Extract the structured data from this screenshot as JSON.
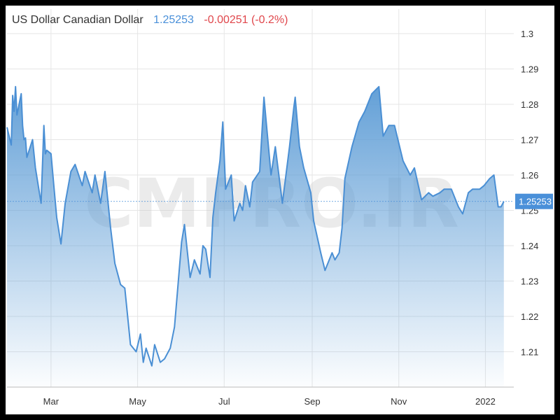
{
  "header": {
    "pair_name": "US Dollar Canadian Dollar",
    "last_price": "1.25253",
    "change": "-0.00251 (-0.2%)"
  },
  "watermark": "CMPRO.IR",
  "colors": {
    "line": "#4a8fd4",
    "fill_top": "#5b9bd5",
    "price_label_bg": "#4a90d9",
    "change_negative": "#e0474c",
    "grid": "#e6e6e6"
  },
  "chart_data": {
    "type": "area",
    "title": "US Dollar Canadian Dollar",
    "xlabel": "",
    "ylabel": "",
    "x_ticks": [
      "Mar",
      "May",
      "Jul",
      "Sep",
      "Nov",
      "2022"
    ],
    "y_ticks": [
      "1.21",
      "1.22",
      "1.23",
      "1.24",
      "1.25",
      "1.26",
      "1.27",
      "1.28",
      "1.29",
      "1.3"
    ],
    "ylim": [
      1.2,
      1.3
    ],
    "current_value": 1.25253,
    "current_value_label": "1.25253",
    "grid": true,
    "series": [
      {
        "x": [
          "2021-01-29",
          "2021-02-01",
          "2021-02-02",
          "2021-02-03",
          "2021-02-04",
          "2021-02-05",
          "2021-02-08",
          "2021-02-09",
          "2021-02-10",
          "2021-02-11",
          "2021-02-12",
          "2021-02-16",
          "2021-02-18",
          "2021-02-22",
          "2021-02-24",
          "2021-02-25",
          "2021-02-26",
          "2021-03-01",
          "2021-03-03",
          "2021-03-05",
          "2021-03-08",
          "2021-03-11",
          "2021-03-15",
          "2021-03-18",
          "2021-03-23",
          "2021-03-25",
          "2021-03-30",
          "2021-04-01",
          "2021-04-05",
          "2021-04-08",
          "2021-04-12",
          "2021-04-15",
          "2021-04-19",
          "2021-04-22",
          "2021-04-26",
          "2021-04-30",
          "2021-05-03",
          "2021-05-05",
          "2021-05-07",
          "2021-05-11",
          "2021-05-13",
          "2021-05-17",
          "2021-05-20",
          "2021-05-24",
          "2021-05-27",
          "2021-06-01",
          "2021-06-03",
          "2021-06-07",
          "2021-06-10",
          "2021-06-14",
          "2021-06-16",
          "2021-06-18",
          "2021-06-21",
          "2021-06-23",
          "2021-06-25",
          "2021-06-28",
          "2021-06-30",
          "2021-07-02",
          "2021-07-06",
          "2021-07-08",
          "2021-07-12",
          "2021-07-14",
          "2021-07-16",
          "2021-07-19",
          "2021-07-21",
          "2021-07-26",
          "2021-07-29",
          "2021-08-03",
          "2021-08-06",
          "2021-08-11",
          "2021-08-16",
          "2021-08-19",
          "2021-08-20",
          "2021-08-23",
          "2021-08-26",
          "2021-08-31",
          "2021-09-02",
          "2021-09-07",
          "2021-09-10",
          "2021-09-15",
          "2021-09-17",
          "2021-09-20",
          "2021-09-22",
          "2021-09-24",
          "2021-09-29",
          "2021-10-04",
          "2021-10-08",
          "2021-10-13",
          "2021-10-18",
          "2021-10-21",
          "2021-10-25",
          "2021-10-29",
          "2021-11-01",
          "2021-11-04",
          "2021-11-09",
          "2021-11-12",
          "2021-11-17",
          "2021-11-22",
          "2021-11-25",
          "2021-11-30",
          "2021-12-03",
          "2021-12-08",
          "2021-12-13",
          "2021-12-16",
          "2021-12-20",
          "2021-12-23",
          "2021-12-28",
          "2021-12-31",
          "2022-01-04",
          "2022-01-07",
          "2022-01-10",
          "2022-01-12",
          "2022-01-14"
        ],
        "values": [
          1.2735,
          1.2685,
          1.2825,
          1.278,
          1.285,
          1.277,
          1.283,
          1.274,
          1.27,
          1.2705,
          1.265,
          1.27,
          1.262,
          1.252,
          1.274,
          1.266,
          1.267,
          1.266,
          1.257,
          1.248,
          1.2405,
          1.252,
          1.261,
          1.263,
          1.257,
          1.261,
          1.255,
          1.26,
          1.252,
          1.261,
          1.245,
          1.235,
          1.229,
          1.228,
          1.212,
          1.21,
          1.215,
          1.207,
          1.211,
          1.206,
          1.212,
          1.207,
          1.208,
          1.211,
          1.217,
          1.241,
          1.246,
          1.231,
          1.236,
          1.232,
          1.24,
          1.239,
          1.231,
          1.248,
          1.255,
          1.264,
          1.275,
          1.256,
          1.26,
          1.247,
          1.252,
          1.25,
          1.257,
          1.251,
          1.258,
          1.261,
          1.282,
          1.26,
          1.268,
          1.252,
          1.268,
          1.279,
          1.282,
          1.268,
          1.262,
          1.255,
          1.247,
          1.238,
          1.233,
          1.238,
          1.236,
          1.238,
          1.245,
          1.259,
          1.268,
          1.275,
          1.278,
          1.283,
          1.285,
          1.271,
          1.274,
          1.274,
          1.269,
          1.264,
          1.26,
          1.262,
          1.253,
          1.255,
          1.254,
          1.255,
          1.256,
          1.256,
          1.251,
          1.249,
          1.255,
          1.256,
          1.256,
          1.257,
          1.259,
          1.26,
          1.251,
          1.251,
          1.2525
        ]
      }
    ]
  }
}
